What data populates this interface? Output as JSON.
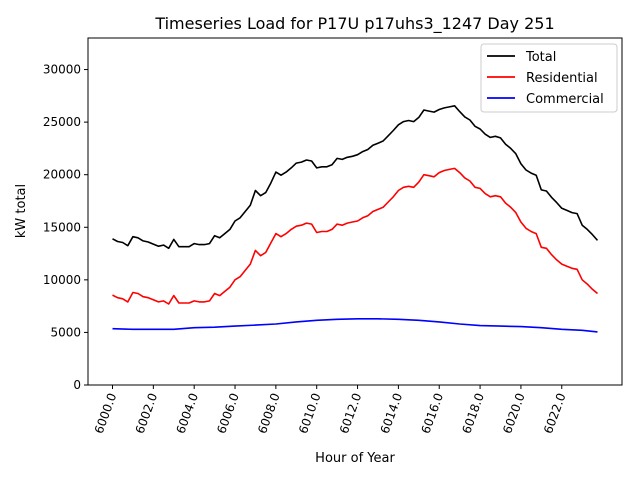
{
  "chart_data": {
    "type": "line",
    "title": "Timeseries Load for P17U p17uhs3_1247  Day 251",
    "xlabel": "Hour of Year",
    "ylabel": "kW total",
    "xlim": [
      5998.8,
      6024.95
    ],
    "ylim": [
      0,
      33000
    ],
    "grid": false,
    "legend_placement": "top-right",
    "xticks": [
      6000,
      6002,
      6004,
      6006,
      6008,
      6010,
      6012,
      6014,
      6016,
      6018,
      6020,
      6022
    ],
    "xtick_labels": [
      "6000.0",
      "6002.0",
      "6004.0",
      "6006.0",
      "6008.0",
      "6010.0",
      "6012.0",
      "6014.0",
      "6016.0",
      "6018.0",
      "6020.0",
      "6022.0"
    ],
    "yticks": [
      0,
      5000,
      10000,
      15000,
      20000,
      25000,
      30000
    ],
    "ytick_labels": [
      "0",
      "5000",
      "10000",
      "15000",
      "20000",
      "25000",
      "30000"
    ],
    "x_start": 6000,
    "x_step": 0.25,
    "series": [
      {
        "name": "Total",
        "color": "#000000",
        "values": [
          13900,
          13650,
          13550,
          13250,
          14100,
          14000,
          13700,
          13600,
          13400,
          13200,
          13300,
          13000,
          13850,
          13150,
          13150,
          13150,
          13450,
          13350,
          13350,
          13450,
          14200,
          14000,
          14400,
          14800,
          15600,
          15900,
          16500,
          17100,
          18500,
          18000,
          18300,
          19200,
          20250,
          19950,
          20250,
          20650,
          21100,
          21200,
          21400,
          21300,
          20650,
          20750,
          20750,
          20950,
          21550,
          21450,
          21650,
          21750,
          21900,
          22200,
          22400,
          22800,
          23000,
          23200,
          23700,
          24200,
          24750,
          25050,
          25150,
          25050,
          25450,
          26150,
          26050,
          25950,
          26200,
          26350,
          26450,
          26550,
          26000,
          25500,
          25200,
          24600,
          24350,
          23850,
          23550,
          23650,
          23500,
          22900,
          22500,
          22000,
          21050,
          20450,
          20150,
          19950,
          18550,
          18450,
          17850,
          17350,
          16800,
          16600,
          16400,
          16300,
          15200,
          14800,
          14300,
          13750
        ]
      },
      {
        "name": "Residential",
        "color": "#ff0000",
        "values": [
          8550,
          8300,
          8200,
          7900,
          8800,
          8700,
          8400,
          8300,
          8100,
          7900,
          8000,
          7700,
          8500,
          7800,
          7800,
          7800,
          8000,
          7900,
          7900,
          8000,
          8700,
          8500,
          8900,
          9300,
          10000,
          10300,
          10900,
          11500,
          12800,
          12300,
          12600,
          13500,
          14400,
          14100,
          14400,
          14800,
          15100,
          15200,
          15400,
          15300,
          14500,
          14600,
          14600,
          14800,
          15300,
          15200,
          15400,
          15500,
          15600,
          15900,
          16100,
          16500,
          16700,
          16900,
          17400,
          17900,
          18500,
          18800,
          18900,
          18800,
          19300,
          20000,
          19900,
          19800,
          20200,
          20400,
          20500,
          20600,
          20200,
          19700,
          19400,
          18800,
          18700,
          18200,
          17900,
          18000,
          17900,
          17300,
          16900,
          16400,
          15500,
          14900,
          14600,
          14400,
          13100,
          13000,
          12400,
          11900,
          11500,
          11300,
          11100,
          11000,
          10000,
          9600,
          9100,
          8700
        ]
      },
      {
        "name": "Commercial",
        "color": "#0000ff",
        "x": [
          6000,
          6001,
          6002,
          6003,
          6004,
          6005,
          6006,
          6007,
          6008,
          6009,
          6010,
          6011,
          6012,
          6013,
          6014,
          6015,
          6016,
          6017,
          6018,
          6019,
          6020,
          6021,
          6022,
          6023,
          6023.75
        ],
        "values": [
          5350,
          5300,
          5300,
          5300,
          5450,
          5500,
          5600,
          5700,
          5800,
          6000,
          6150,
          6250,
          6300,
          6300,
          6250,
          6150,
          6000,
          5800,
          5650,
          5600,
          5550,
          5450,
          5300,
          5200,
          5050
        ]
      }
    ]
  }
}
